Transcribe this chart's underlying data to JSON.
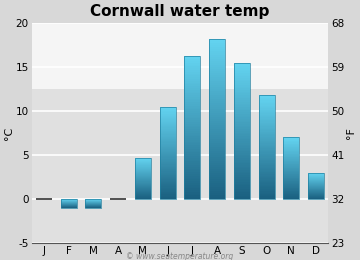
{
  "title": "Cornwall water temp",
  "months": [
    "J",
    "F",
    "M",
    "A",
    "M",
    "J",
    "J",
    "A",
    "S",
    "O",
    "N",
    "D"
  ],
  "values_c": [
    0,
    -1.0,
    -1.0,
    0,
    4.7,
    10.5,
    16.3,
    18.2,
    15.5,
    11.8,
    7.0,
    3.0
  ],
  "ylim_c": [
    -5,
    20
  ],
  "yticks_c": [
    -5,
    0,
    5,
    10,
    15,
    20
  ],
  "yticks_f": [
    23,
    32,
    41,
    50,
    59,
    68
  ],
  "ylabel_left": "°C",
  "ylabel_right": "°F",
  "bar_color_top": "#63d3f0",
  "bar_color_bottom": "#1a6080",
  "outer_bg": "#d8d8d8",
  "plot_bg_upper": "#f5f5f5",
  "plot_bg_lower": "#e0e0e0",
  "grid_color": "#ffffff",
  "watermark": "© www.seatemperature.org",
  "title_fontsize": 11,
  "tick_fontsize": 7.5,
  "label_fontsize": 8
}
